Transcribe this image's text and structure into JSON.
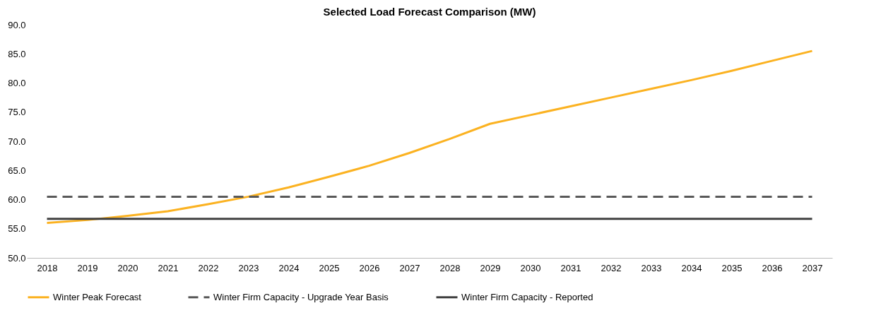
{
  "chart_data": {
    "type": "line",
    "title": "Selected Load Forecast Comparison (MW)",
    "categories": [
      "2018",
      "2019",
      "2020",
      "2021",
      "2022",
      "2023",
      "2024",
      "2025",
      "2026",
      "2027",
      "2028",
      "2029",
      "2030",
      "2031",
      "2032",
      "2033",
      "2034",
      "2035",
      "2036",
      "2037"
    ],
    "series": [
      {
        "name": "Winter Peak Forecast",
        "color": "#fbb221",
        "line_style": "solid",
        "values": [
          56.0,
          56.5,
          57.2,
          58.0,
          59.2,
          60.5,
          62.1,
          63.9,
          65.8,
          68.0,
          70.4,
          73.0,
          74.5,
          76.0,
          77.5,
          79.0,
          80.5,
          82.1,
          83.8,
          85.5
        ]
      },
      {
        "name": "Winter Firm Capacity - Upgrade Year Basis",
        "color": "#595959",
        "line_style": "dashed",
        "values": [
          60.5,
          60.5,
          60.5,
          60.5,
          60.5,
          60.5,
          60.5,
          60.5,
          60.5,
          60.5,
          60.5,
          60.5,
          60.5,
          60.5,
          60.5,
          60.5,
          60.5,
          60.5,
          60.5,
          60.5
        ]
      },
      {
        "name": "Winter Firm Capacity - Reported",
        "color": "#404040",
        "line_style": "solid",
        "values": [
          56.7,
          56.7,
          56.7,
          56.7,
          56.7,
          56.7,
          56.7,
          56.7,
          56.7,
          56.7,
          56.7,
          56.7,
          56.7,
          56.7,
          56.7,
          56.7,
          56.7,
          56.7,
          56.7,
          56.7
        ]
      }
    ],
    "ylim": [
      50,
      90
    ],
    "yticks": [
      {
        "value": 50,
        "label": "50.0"
      },
      {
        "value": 55,
        "label": "55.0"
      },
      {
        "value": 60,
        "label": "60.0"
      },
      {
        "value": 65,
        "label": "65.0"
      },
      {
        "value": 70,
        "label": "70.0"
      },
      {
        "value": 75,
        "label": "75.0"
      },
      {
        "value": 80,
        "label": "80.0"
      },
      {
        "value": 85,
        "label": "85.0"
      },
      {
        "value": 90,
        "label": "90.0"
      }
    ],
    "grid": false,
    "legend": "bottom",
    "marker": "none"
  }
}
